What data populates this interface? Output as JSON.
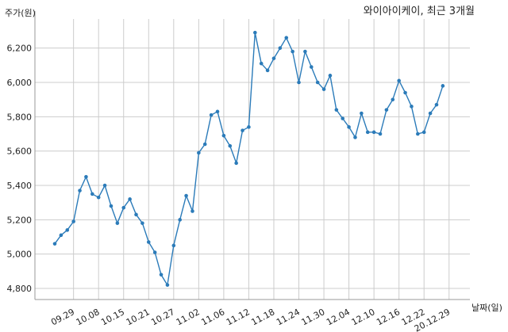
{
  "chart_data": {
    "type": "line",
    "title": "와이아이케이, 최근 3개월",
    "ylabel": "주가(원)",
    "xlabel": "날짜(일)",
    "ylim": [
      4750,
      6340
    ],
    "yticks": [
      4800,
      5000,
      5200,
      5400,
      5600,
      5800,
      6000,
      6200
    ],
    "ytick_labels": [
      "4,800",
      "5,000",
      "5,200",
      "5,400",
      "5,600",
      "5,800",
      "6,000",
      "6,200"
    ],
    "xtick_labels": [
      "09.29",
      "10.08",
      "10.15",
      "10.21",
      "10.27",
      "11.02",
      "11.06",
      "11.12",
      "11.18",
      "11.24",
      "11.30",
      "12.04",
      "12.10",
      "12.16",
      "12.22",
      "20.12.29"
    ],
    "xtick_index": [
      3,
      7,
      11,
      15,
      19,
      23,
      27,
      31,
      35,
      39,
      43,
      47,
      51,
      55,
      59,
      63
    ],
    "grid": true,
    "colors": {
      "line": "#2b7bb9",
      "grid": "#cccccc",
      "axis": "#999999"
    },
    "series": [
      {
        "values": [
          5060,
          5110,
          5140,
          5190,
          5370,
          5450,
          5350,
          5330,
          5400,
          5280,
          5180,
          5270,
          5320,
          5230,
          5180,
          5070,
          5010,
          4880,
          4820,
          5050,
          5200,
          5340,
          5250,
          5590,
          5640,
          5810,
          5830,
          5690,
          5630,
          5530,
          5720,
          5740,
          6290,
          6110,
          6070,
          6140,
          6200,
          6260,
          6180,
          6000,
          6180,
          6090,
          6000,
          5960,
          6040,
          5840,
          5790,
          5740,
          5680,
          5820,
          5710,
          5710,
          5700,
          5840,
          5900,
          6010,
          5940,
          5860,
          5700,
          5710,
          5820,
          5870,
          5980
        ]
      }
    ]
  }
}
